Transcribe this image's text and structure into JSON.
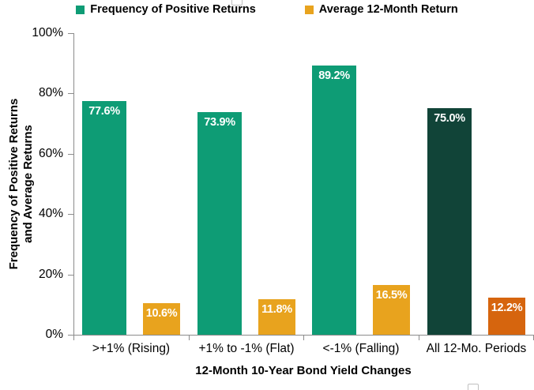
{
  "chart_data": {
    "type": "bar",
    "categories": [
      ">+1% (Rising)",
      "+1% to -1% (Flat)",
      "<-1% (Falling)",
      "All 12-Mo. Periods"
    ],
    "series": [
      {
        "name": "Frequency of Positive Returns",
        "values": [
          77.6,
          73.9,
          89.2,
          75.0
        ],
        "labels": [
          "77.6%",
          "73.9%",
          "89.2%",
          "75.0%"
        ],
        "color": "#0E9C75",
        "highlight_color": "#114438",
        "highlight_index": 3
      },
      {
        "name": "Average 12-Month Return",
        "values": [
          10.6,
          11.8,
          16.5,
          12.2
        ],
        "labels": [
          "10.6%",
          "11.8%",
          "16.5%",
          "12.2%"
        ],
        "color": "#E8A31E",
        "highlight_color": "#D6650E",
        "highlight_index": 3
      }
    ],
    "xlabel": "12-Month 10-Year Bond Yield Changes",
    "ylabel": "Frequency of Positive Returns and Average Returns",
    "ylabel_lines": [
      "Frequency of Positive Returns",
      "and Average Returns"
    ],
    "ylim": [
      0,
      100
    ],
    "ytick_values": [
      0,
      20,
      40,
      60,
      80,
      100
    ],
    "ytick_labels": [
      "0%",
      "20%",
      "40%",
      "60%",
      "80%",
      "100%"
    ],
    "grid": false,
    "legend_position": "top",
    "bar_label_color": "#FFFFFF",
    "axis_color": "#8C8C8C",
    "background_color": "#FFFFFF"
  }
}
